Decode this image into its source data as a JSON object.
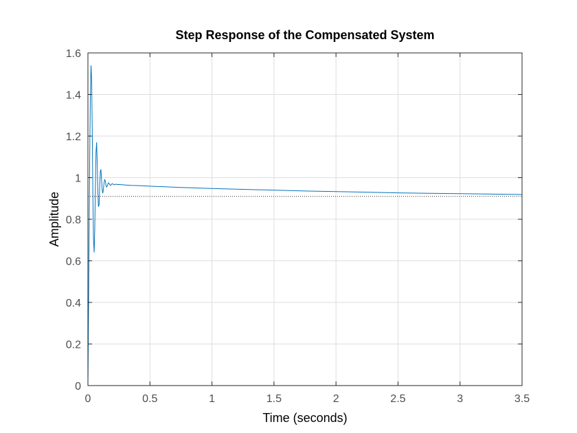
{
  "chart_data": {
    "type": "line",
    "title": "Step Response of the Compensated System",
    "xlabel": "Time (seconds)",
    "ylabel": "Amplitude",
    "xlim": [
      0,
      3.5
    ],
    "ylim": [
      0,
      1.6
    ],
    "x_ticks": [
      "0",
      "0.5",
      "1",
      "1.5",
      "2",
      "2.5",
      "3",
      "3.5"
    ],
    "y_ticks": [
      "0",
      "0.2",
      "0.4",
      "0.6",
      "0.8",
      "1",
      "1.2",
      "1.4",
      "1.6"
    ],
    "grid": true,
    "series": [
      {
        "color": "#0072bd",
        "x": [
          0,
          0.005,
          0.01,
          0.015,
          0.02,
          0.025,
          0.03,
          0.035,
          0.04,
          0.045,
          0.05,
          0.055,
          0.06,
          0.065,
          0.07,
          0.075,
          0.08,
          0.085,
          0.09,
          0.095,
          0.1,
          0.105,
          0.11,
          0.115,
          0.12,
          0.125,
          0.13,
          0.135,
          0.14,
          0.145,
          0.15,
          0.155,
          0.16,
          0.165,
          0.17,
          0.175,
          0.18,
          0.185,
          0.19,
          0.195,
          0.2,
          0.205,
          0.21,
          0.215,
          0.22,
          0.225,
          0.23,
          0.235,
          0.24,
          0.245,
          0.25,
          0.26,
          0.27,
          0.28,
          0.29,
          0.3,
          0.35,
          0.4,
          0.5,
          0.75,
          1.0,
          1.25,
          1.5,
          1.75,
          2.0,
          2.25,
          2.5,
          2.75,
          3.0,
          3.25,
          3.5
        ],
        "y": [
          0,
          0.37,
          0.77,
          1.14,
          1.41,
          1.54,
          1.47,
          1.22,
          0.91,
          0.7,
          0.64,
          0.75,
          0.95,
          1.12,
          1.17,
          1.07,
          0.93,
          0.86,
          0.87,
          0.96,
          1.03,
          1.04,
          0.99,
          0.94,
          0.925,
          0.945,
          0.975,
          0.99,
          0.985,
          0.965,
          0.955,
          0.958,
          0.968,
          0.975,
          0.973,
          0.967,
          0.963,
          0.964,
          0.968,
          0.971,
          0.97,
          0.968,
          0.966,
          0.966,
          0.968,
          0.969,
          0.968,
          0.967,
          0.967,
          0.967,
          0.967,
          0.967,
          0.966,
          0.966,
          0.965,
          0.965,
          0.963,
          0.962,
          0.959,
          0.953,
          0.948,
          0.944,
          0.94,
          0.936,
          0.933,
          0.93,
          0.927,
          0.925,
          0.923,
          0.921,
          0.919
        ]
      }
    ],
    "reference_line": {
      "y": 0.91,
      "style": "dotted",
      "color": "#262626"
    }
  }
}
